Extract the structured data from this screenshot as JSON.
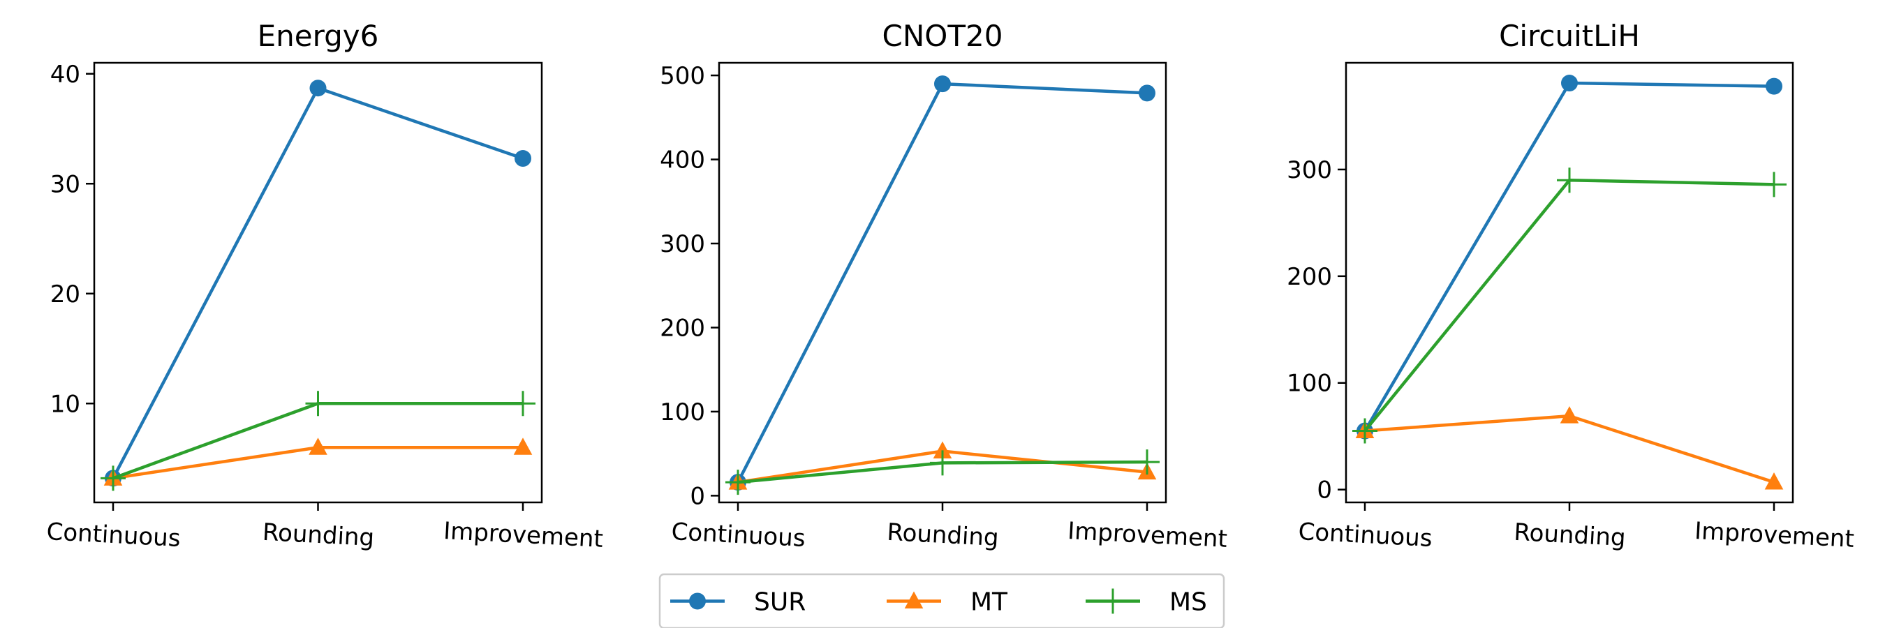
{
  "chart_data": [
    {
      "type": "line",
      "title": "Energy6",
      "categories": [
        "Continuous",
        "Rounding",
        "Improvement"
      ],
      "ylim": [
        1,
        41
      ],
      "yticks": [
        10,
        20,
        30,
        40
      ],
      "series": [
        {
          "name": "SUR",
          "values": [
            3.2,
            38.7,
            32.3
          ]
        },
        {
          "name": "MT",
          "values": [
            3.2,
            6.0,
            6.0
          ]
        },
        {
          "name": "MS",
          "values": [
            3.2,
            10.0,
            10.0
          ]
        }
      ]
    },
    {
      "type": "line",
      "title": "CNOT20",
      "categories": [
        "Continuous",
        "Rounding",
        "Improvement"
      ],
      "ylim": [
        -8,
        515
      ],
      "yticks": [
        0,
        100,
        200,
        300,
        400,
        500
      ],
      "series": [
        {
          "name": "SUR",
          "values": [
            16,
            490,
            479
          ]
        },
        {
          "name": "MT",
          "values": [
            16,
            53,
            28
          ]
        },
        {
          "name": "MS",
          "values": [
            16,
            39,
            40
          ]
        }
      ]
    },
    {
      "type": "line",
      "title": "CircuitLiH",
      "categories": [
        "Continuous",
        "Rounding",
        "Improvement"
      ],
      "ylim": [
        -12,
        400
      ],
      "yticks": [
        0,
        100,
        200,
        300
      ],
      "series": [
        {
          "name": "SUR",
          "values": [
            55,
            381,
            378
          ]
        },
        {
          "name": "MT",
          "values": [
            55,
            69,
            7
          ]
        },
        {
          "name": "MS",
          "values": [
            55,
            290,
            286
          ]
        }
      ]
    }
  ],
  "legend": {
    "placement": "bottom-center",
    "entries": [
      {
        "name": "SUR",
        "color": "#1f77b4",
        "marker": "circle"
      },
      {
        "name": "MT",
        "color": "#ff7f0e",
        "marker": "triangle"
      },
      {
        "name": "MS",
        "color": "#2ca02c",
        "marker": "plus"
      }
    ]
  }
}
